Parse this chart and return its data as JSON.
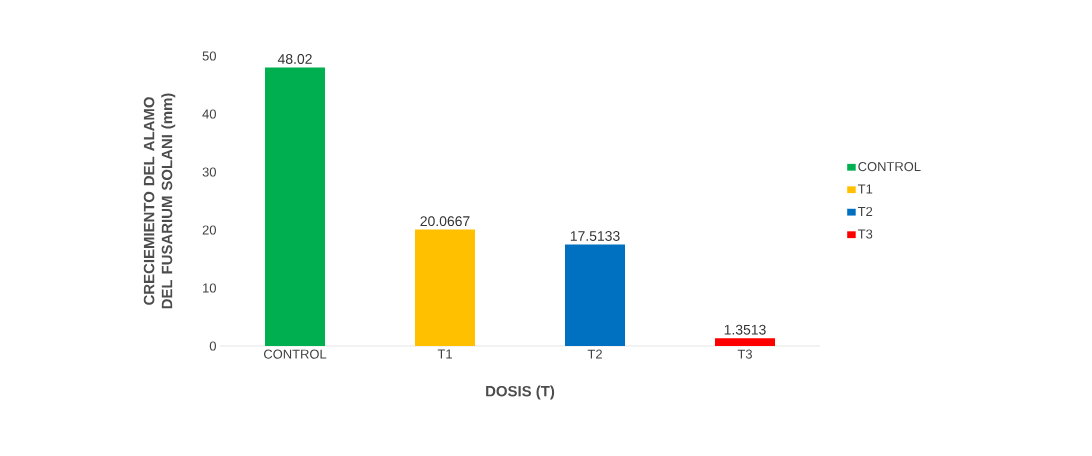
{
  "chart_data": {
    "type": "bar",
    "xlabel": "DOSIS (T)",
    "ylabel": "CRECIEMIENTO DEL ALAMO DEL FUSARIUM SOLANI (mm)",
    "categories": [
      "CONTROL",
      "T1",
      "T2",
      "T3"
    ],
    "series": [
      {
        "name": "CONTROL",
        "color": "#00b050",
        "values": [
          48.02,
          null,
          null,
          null
        ]
      },
      {
        "name": "T1",
        "color": "#ffc000",
        "values": [
          null,
          20.0667,
          null,
          null
        ]
      },
      {
        "name": "T2",
        "color": "#0070c0",
        "values": [
          null,
          null,
          17.5133,
          null
        ]
      },
      {
        "name": "T3",
        "color": "#ff0000",
        "values": [
          null,
          null,
          null,
          1.3513
        ]
      }
    ],
    "ylim": [
      0,
      50
    ],
    "yticks": [
      0,
      10,
      20,
      30,
      40,
      50
    ],
    "data_labels": true,
    "legend": "right",
    "grid": false
  }
}
